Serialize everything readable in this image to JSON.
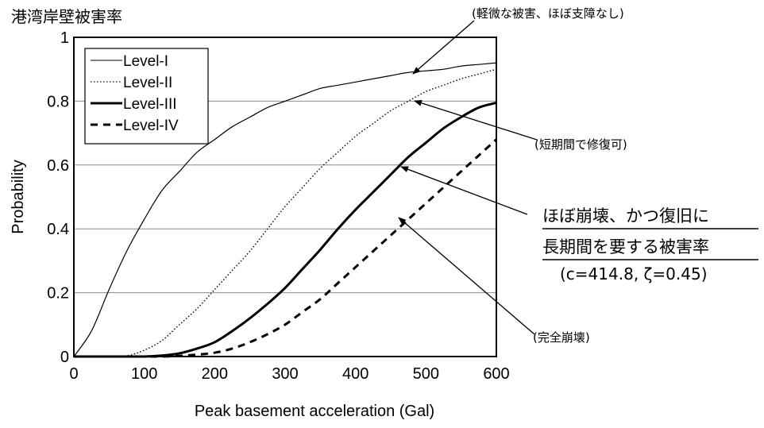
{
  "chart_data": {
    "type": "line",
    "title": "港湾岸壁被害率",
    "xlabel": "Peak basement acceleration (Gal)",
    "ylabel": "Probability",
    "xlim": [
      0,
      600
    ],
    "ylim": [
      0,
      1
    ],
    "x_ticks": [
      "0",
      "100",
      "200",
      "300",
      "400",
      "500",
      "600"
    ],
    "y_ticks": [
      "0",
      "0.2",
      "0.4",
      "0.6",
      "0.8",
      "1"
    ],
    "grid": "horizontal",
    "legend": "top-left",
    "x": [
      0,
      25,
      50,
      75,
      100,
      125,
      150,
      175,
      200,
      225,
      250,
      275,
      300,
      325,
      350,
      375,
      400,
      425,
      450,
      475,
      500,
      525,
      550,
      575,
      600
    ],
    "series": [
      {
        "name": "Level-I",
        "style": "thin-solid",
        "values": [
          0,
          0.08,
          0.21,
          0.33,
          0.43,
          0.52,
          0.58,
          0.64,
          0.68,
          0.72,
          0.75,
          0.78,
          0.8,
          0.82,
          0.84,
          0.85,
          0.86,
          0.87,
          0.88,
          0.89,
          0.895,
          0.9,
          0.91,
          0.915,
          0.92
        ]
      },
      {
        "name": "Level-II",
        "style": "dotted",
        "values": [
          0,
          0,
          0,
          0.002,
          0.02,
          0.05,
          0.1,
          0.15,
          0.21,
          0.27,
          0.33,
          0.4,
          0.47,
          0.53,
          0.59,
          0.64,
          0.69,
          0.73,
          0.77,
          0.8,
          0.83,
          0.85,
          0.87,
          0.885,
          0.9
        ]
      },
      {
        "name": "Level-III",
        "style": "thick-solid",
        "values": [
          0,
          0,
          0,
          0,
          0,
          0.003,
          0.01,
          0.025,
          0.045,
          0.08,
          0.12,
          0.165,
          0.215,
          0.275,
          0.335,
          0.4,
          0.46,
          0.515,
          0.57,
          0.625,
          0.67,
          0.715,
          0.75,
          0.78,
          0.795
        ]
      },
      {
        "name": "Level-IV",
        "style": "thick-dashed",
        "values": [
          0,
          0,
          0,
          0,
          0,
          0,
          0.002,
          0.006,
          0.012,
          0.025,
          0.045,
          0.07,
          0.1,
          0.14,
          0.18,
          0.23,
          0.28,
          0.33,
          0.38,
          0.43,
          0.48,
          0.53,
          0.58,
          0.63,
          0.68
        ]
      }
    ],
    "annotations": [
      {
        "text": "(軽微な被害、ほぼ支障なし)",
        "x": 480,
        "y": 0.88
      },
      {
        "text": "(短期間で修復可)",
        "x": 482,
        "y": 0.8
      },
      {
        "text": "ほぼ崩壊、かつ復旧に",
        "x": 472,
        "y": 0.6
      },
      {
        "text": "長期間を要する被害率",
        "x": 472,
        "y": 0.6
      },
      {
        "text": "(c=414.8,  ζ=0.45)",
        "x": 472,
        "y": 0.6
      },
      {
        "text": "(完全崩壊)",
        "x": 468,
        "y": 0.43
      }
    ]
  }
}
